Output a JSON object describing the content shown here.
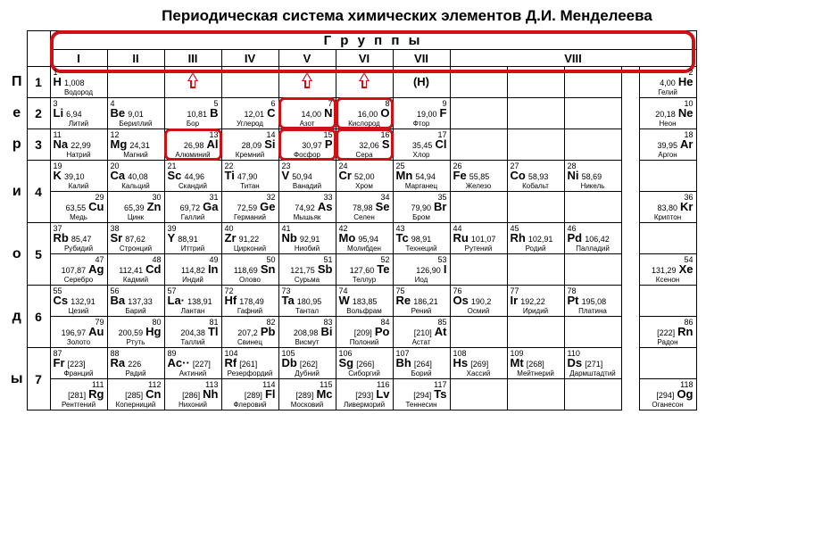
{
  "title": "Периодическая система химических элементов Д.И. Менделеева",
  "headers": {
    "groups": "Г р у п п ы",
    "roman": [
      "I",
      "II",
      "III",
      "IV",
      "V",
      "VI",
      "VII",
      "VIII"
    ]
  },
  "side": [
    "П",
    "е",
    "р",
    "и",
    "о",
    "д",
    "ы"
  ],
  "periods": [
    "1",
    "2",
    "3",
    "4",
    "5",
    "6",
    "7"
  ],
  "H_paren": "(H)",
  "colors": {
    "highlight": "#d01015",
    "border": "#000000",
    "bg": "#ffffff"
  },
  "elements": {
    "H": {
      "n": "1",
      "m": "1,008",
      "s": "H",
      "name": "Водород",
      "side": "L"
    },
    "He": {
      "n": "2",
      "m": "4,00",
      "s": "He",
      "name": "Гелий",
      "side": "R"
    },
    "Li": {
      "n": "3",
      "m": "6,94",
      "s": "Li",
      "name": "Литий",
      "side": "L"
    },
    "Be": {
      "n": "4",
      "m": "9,01",
      "s": "Be",
      "name": "Бериллий",
      "side": "L"
    },
    "B": {
      "n": "5",
      "m": "10,81",
      "s": "B",
      "name": "Бор",
      "side": "R"
    },
    "C": {
      "n": "6",
      "m": "12,01",
      "s": "C",
      "name": "Углерод",
      "side": "R"
    },
    "N": {
      "n": "7",
      "m": "14,00",
      "s": "N",
      "name": "Азот",
      "side": "R",
      "hl": true
    },
    "O": {
      "n": "8",
      "m": "16,00",
      "s": "O",
      "name": "Кислород",
      "side": "R",
      "hl": true
    },
    "F": {
      "n": "9",
      "m": "19,00",
      "s": "F",
      "name": "Фтор",
      "side": "R"
    },
    "Ne": {
      "n": "10",
      "m": "20,18",
      "s": "Ne",
      "name": "Неон",
      "side": "R"
    },
    "Na": {
      "n": "11",
      "m": "22,99",
      "s": "Na",
      "name": "Натрий",
      "side": "L"
    },
    "Mg": {
      "n": "12",
      "m": "24,31",
      "s": "Mg",
      "name": "Магний",
      "side": "L"
    },
    "Al": {
      "n": "13",
      "m": "26,98",
      "s": "Al",
      "name": "Алюминий",
      "side": "R",
      "hl": true
    },
    "Si": {
      "n": "14",
      "m": "28,09",
      "s": "Si",
      "name": "Кремний",
      "side": "R"
    },
    "P": {
      "n": "15",
      "m": "30,97",
      "s": "P",
      "name": "Фосфор",
      "side": "R",
      "hl": true
    },
    "S": {
      "n": "16",
      "m": "32,06",
      "s": "S",
      "name": "Сера",
      "side": "R",
      "hl": true
    },
    "Cl": {
      "n": "17",
      "m": "35,45",
      "s": "Cl",
      "name": "Хлор",
      "side": "R"
    },
    "Ar": {
      "n": "18",
      "m": "39,95",
      "s": "Ar",
      "name": "Аргон",
      "side": "R"
    },
    "K": {
      "n": "19",
      "m": "39,10",
      "s": "K",
      "name": "Калий",
      "side": "L"
    },
    "Ca": {
      "n": "20",
      "m": "40,08",
      "s": "Ca",
      "name": "Кальций",
      "side": "L"
    },
    "Sc": {
      "n": "21",
      "m": "44,96",
      "s": "Sc",
      "name": "Скандий",
      "side": "L"
    },
    "Ti": {
      "n": "22",
      "m": "47,90",
      "s": "Ti",
      "name": "Титан",
      "side": "L"
    },
    "V": {
      "n": "23",
      "m": "50,94",
      "s": "V",
      "name": "Ванадий",
      "side": "L"
    },
    "Cr": {
      "n": "24",
      "m": "52,00",
      "s": "Cr",
      "name": "Хром",
      "side": "L"
    },
    "Mn": {
      "n": "25",
      "m": "54,94",
      "s": "Mn",
      "name": "Марганец",
      "side": "L"
    },
    "Fe": {
      "n": "26",
      "m": "55,85",
      "s": "Fe",
      "name": "Железо",
      "side": "L"
    },
    "Co": {
      "n": "27",
      "m": "58,93",
      "s": "Co",
      "name": "Кобальт",
      "side": "L"
    },
    "Ni": {
      "n": "28",
      "m": "58,69",
      "s": "Ni",
      "name": "Никель",
      "side": "L"
    },
    "Cu": {
      "n": "29",
      "m": "63,55",
      "s": "Cu",
      "name": "Медь",
      "side": "R"
    },
    "Zn": {
      "n": "30",
      "m": "65,39",
      "s": "Zn",
      "name": "Цинк",
      "side": "R"
    },
    "Ga": {
      "n": "31",
      "m": "69,72",
      "s": "Ga",
      "name": "Галлий",
      "side": "R"
    },
    "Ge": {
      "n": "32",
      "m": "72,59",
      "s": "Ge",
      "name": "Германий",
      "side": "R"
    },
    "As": {
      "n": "33",
      "m": "74,92",
      "s": "As",
      "name": "Мышьяк",
      "side": "R"
    },
    "Se": {
      "n": "34",
      "m": "78,98",
      "s": "Se",
      "name": "Селен",
      "side": "R"
    },
    "Br": {
      "n": "35",
      "m": "79,90",
      "s": "Br",
      "name": "Бром",
      "side": "R"
    },
    "Kr": {
      "n": "36",
      "m": "83,80",
      "s": "Kr",
      "name": "Криптон",
      "side": "R"
    },
    "Rb": {
      "n": "37",
      "m": "85,47",
      "s": "Rb",
      "name": "Рубидий",
      "side": "L"
    },
    "Sr": {
      "n": "38",
      "m": "87,62",
      "s": "Sr",
      "name": "Стронций",
      "side": "L"
    },
    "Y": {
      "n": "39",
      "m": "88,91",
      "s": "Y",
      "name": "Иттрий",
      "side": "L"
    },
    "Zr": {
      "n": "40",
      "m": "91,22",
      "s": "Zr",
      "name": "Цирконий",
      "side": "L"
    },
    "Nb": {
      "n": "41",
      "m": "92,91",
      "s": "Nb",
      "name": "Ниобий",
      "side": "L"
    },
    "Mo": {
      "n": "42",
      "m": "95,94",
      "s": "Mo",
      "name": "Молибден",
      "side": "L"
    },
    "Tc": {
      "n": "43",
      "m": "98,91",
      "s": "Tc",
      "name": "Технеций",
      "side": "L"
    },
    "Ru": {
      "n": "44",
      "m": "101,07",
      "s": "Ru",
      "name": "Рутений",
      "side": "L"
    },
    "Rh": {
      "n": "45",
      "m": "102,91",
      "s": "Rh",
      "name": "Родий",
      "side": "L"
    },
    "Pd": {
      "n": "46",
      "m": "106,42",
      "s": "Pd",
      "name": "Палладий",
      "side": "L"
    },
    "Ag": {
      "n": "47",
      "m": "107,87",
      "s": "Ag",
      "name": "Серебро",
      "side": "R"
    },
    "Cd": {
      "n": "48",
      "m": "112,41",
      "s": "Cd",
      "name": "Кадмий",
      "side": "R"
    },
    "In": {
      "n": "49",
      "m": "114,82",
      "s": "In",
      "name": "Индий",
      "side": "R"
    },
    "Sn": {
      "n": "50",
      "m": "118,69",
      "s": "Sn",
      "name": "Олово",
      "side": "R"
    },
    "Sb": {
      "n": "51",
      "m": "121,75",
      "s": "Sb",
      "name": "Сурьма",
      "side": "R"
    },
    "Te": {
      "n": "52",
      "m": "127,60",
      "s": "Te",
      "name": "Теллур",
      "side": "R"
    },
    "I": {
      "n": "53",
      "m": "126,90",
      "s": "I",
      "name": "Иод",
      "side": "R"
    },
    "Xe": {
      "n": "54",
      "m": "131,29",
      "s": "Xe",
      "name": "Ксенон",
      "side": "R"
    },
    "Cs": {
      "n": "55",
      "m": "132,91",
      "s": "Cs",
      "name": "Цезий",
      "side": "L"
    },
    "Ba": {
      "n": "56",
      "m": "137,33",
      "s": "Ba",
      "name": "Барий",
      "side": "L"
    },
    "La": {
      "n": "57",
      "m": "138,91",
      "s": "La·",
      "name": "Лантан",
      "side": "L"
    },
    "Hf": {
      "n": "72",
      "m": "178,49",
      "s": "Hf",
      "name": "Гафний",
      "side": "L"
    },
    "Ta": {
      "n": "73",
      "m": "180,95",
      "s": "Ta",
      "name": "Тантал",
      "side": "L"
    },
    "W": {
      "n": "74",
      "m": "183,85",
      "s": "W",
      "name": "Вольфрам",
      "side": "L"
    },
    "Re": {
      "n": "75",
      "m": "186,21",
      "s": "Re",
      "name": "Рений",
      "side": "L"
    },
    "Os": {
      "n": "76",
      "m": "190,2",
      "s": "Os",
      "name": "Осмий",
      "side": "L"
    },
    "Ir": {
      "n": "77",
      "m": "192,22",
      "s": "Ir",
      "name": "Иридий",
      "side": "L"
    },
    "Pt": {
      "n": "78",
      "m": "195,08",
      "s": "Pt",
      "name": "Платина",
      "side": "L"
    },
    "Au": {
      "n": "79",
      "m": "196,97",
      "s": "Au",
      "name": "Золото",
      "side": "R"
    },
    "Hg": {
      "n": "80",
      "m": "200,59",
      "s": "Hg",
      "name": "Ртуть",
      "side": "R"
    },
    "Tl": {
      "n": "81",
      "m": "204,38",
      "s": "Tl",
      "name": "Таллий",
      "side": "R"
    },
    "Pb": {
      "n": "82",
      "m": "207,2",
      "s": "Pb",
      "name": "Свинец",
      "side": "R"
    },
    "Bi": {
      "n": "83",
      "m": "208,98",
      "s": "Bi",
      "name": "Висмут",
      "side": "R"
    },
    "Po": {
      "n": "84",
      "m": "[209]",
      "s": "Po",
      "name": "Полоний",
      "side": "R"
    },
    "At": {
      "n": "85",
      "m": "[210]",
      "s": "At",
      "name": "Астат",
      "side": "R"
    },
    "Rn": {
      "n": "86",
      "m": "[222]",
      "s": "Rn",
      "name": "Радон",
      "side": "R"
    },
    "Fr": {
      "n": "87",
      "m": "[223]",
      "s": "Fr",
      "name": "Франций",
      "side": "L"
    },
    "Ra": {
      "n": "88",
      "m": "226",
      "s": "Ra",
      "name": "Радий",
      "side": "L"
    },
    "Ac": {
      "n": "89",
      "m": "[227]",
      "s": "Ac··",
      "name": "Актиний",
      "side": "L"
    },
    "Rf": {
      "n": "104",
      "m": "[261]",
      "s": "Rf",
      "name": "Резерфордий",
      "side": "L"
    },
    "Db": {
      "n": "105",
      "m": "[262]",
      "s": "Db",
      "name": "Дубний",
      "side": "L"
    },
    "Sg": {
      "n": "106",
      "m": "[266]",
      "s": "Sg",
      "name": "Сиборгий",
      "side": "L"
    },
    "Bh": {
      "n": "107",
      "m": "[264]",
      "s": "Bh",
      "name": "Борий",
      "side": "L"
    },
    "Hs": {
      "n": "108",
      "m": "[269]",
      "s": "Hs",
      "name": "Хассий",
      "side": "L"
    },
    "Mt": {
      "n": "109",
      "m": "[268]",
      "s": "Mt",
      "name": "Мейтнерий",
      "side": "L"
    },
    "Ds": {
      "n": "110",
      "m": "[271]",
      "s": "Ds",
      "name": "Дармштадтий",
      "side": "L"
    },
    "Rg": {
      "n": "111",
      "m": "[281]",
      "s": "Rg",
      "name": "Рентгений",
      "side": "R"
    },
    "Cn": {
      "n": "112",
      "m": "[285]",
      "s": "Cn",
      "name": "Коперниций",
      "side": "R"
    },
    "Nh": {
      "n": "113",
      "m": "[286]",
      "s": "Nh",
      "name": "Нихоний",
      "side": "R"
    },
    "Fl": {
      "n": "114",
      "m": "[289]",
      "s": "Fl",
      "name": "Флеровий",
      "side": "R"
    },
    "Mc": {
      "n": "115",
      "m": "[289]",
      "s": "Mc",
      "name": "Московий",
      "side": "R"
    },
    "Lv": {
      "n": "116",
      "m": "[293]",
      "s": "Lv",
      "name": "Ливерморий",
      "side": "R"
    },
    "Ts": {
      "n": "117",
      "m": "[294]",
      "s": "Ts",
      "name": "Теннесин",
      "side": "R"
    },
    "Og": {
      "n": "118",
      "m": "[294]",
      "s": "Og",
      "name": "Оганесон",
      "side": "R"
    }
  },
  "layout": [
    [
      "H",
      null,
      null,
      null,
      null,
      null,
      "(H)",
      null,
      null,
      null,
      "GAP",
      "He"
    ],
    [
      "Li",
      "Be",
      "B",
      "C",
      "N",
      "O",
      "F",
      null,
      null,
      null,
      "GAP",
      "Ne"
    ],
    [
      "Na",
      "Mg",
      "Al",
      "Si",
      "P",
      "S",
      "Cl",
      null,
      null,
      null,
      "GAP",
      "Ar"
    ],
    [
      [
        "K",
        "Ca",
        "Sc",
        "Ti",
        "V",
        "Cr",
        "Mn",
        "Fe",
        "Co",
        "Ni",
        "GAP",
        null
      ],
      [
        "Cu",
        "Zn",
        "Ga",
        "Ge",
        "As",
        "Se",
        "Br",
        null,
        null,
        null,
        "GAP",
        "Kr"
      ]
    ],
    [
      [
        "Rb",
        "Sr",
        "Y",
        "Zr",
        "Nb",
        "Mo",
        "Tc",
        "Ru",
        "Rh",
        "Pd",
        "GAP",
        null
      ],
      [
        "Ag",
        "Cd",
        "In",
        "Sn",
        "Sb",
        "Te",
        "I",
        null,
        null,
        null,
        "GAP",
        "Xe"
      ]
    ],
    [
      [
        "Cs",
        "Ba",
        "La",
        "Hf",
        "Ta",
        "W",
        "Re",
        "Os",
        "Ir",
        "Pt",
        "GAP",
        null
      ],
      [
        "Au",
        "Hg",
        "Tl",
        "Pb",
        "Bi",
        "Po",
        "At",
        null,
        null,
        null,
        "GAP",
        "Rn"
      ]
    ],
    [
      [
        "Fr",
        "Ra",
        "Ac",
        "Rf",
        "Db",
        "Sg",
        "Bh",
        "Hs",
        "Mt",
        "Ds",
        "GAP",
        null
      ],
      [
        "Rg",
        "Cn",
        "Nh",
        "Fl",
        "Mc",
        "Lv",
        "Ts",
        null,
        null,
        null,
        "GAP",
        "Og"
      ]
    ]
  ],
  "arrows_at_groups": [
    2,
    4,
    5
  ]
}
